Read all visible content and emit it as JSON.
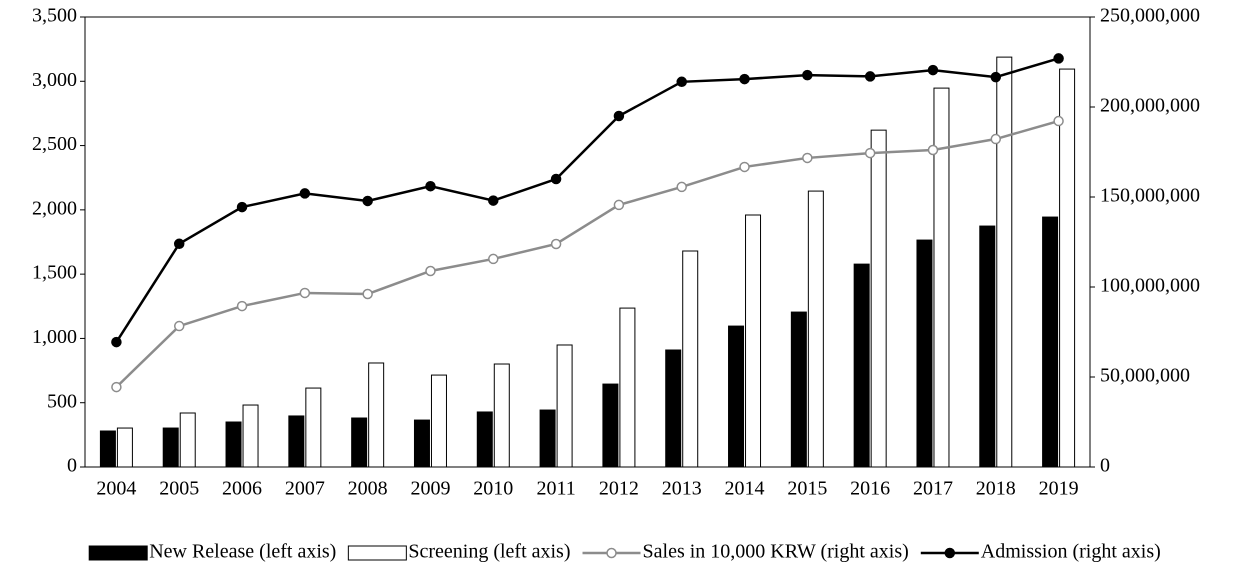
{
  "chart_data": {
    "type": "combo",
    "categories": [
      "2004",
      "2005",
      "2006",
      "2007",
      "2008",
      "2009",
      "2010",
      "2011",
      "2012",
      "2013",
      "2014",
      "2015",
      "2016",
      "2017",
      "2018",
      "2019"
    ],
    "series": [
      {
        "name": "New Release (left axis)",
        "type": "bar",
        "color": "#000000",
        "values": [
          280,
          303,
          350,
          397,
          381,
          365,
          428,
          443,
          645,
          910,
          1096,
          1205,
          1578,
          1765,
          1874,
          1944
        ]
      },
      {
        "name": "Screening (left axis)",
        "type": "bar",
        "color": "#ffffff",
        "values": [
          303,
          420,
          482,
          614,
          809,
          715,
          801,
          949,
          1236,
          1680,
          1960,
          2146,
          2620,
          2947,
          3188,
          3095
        ]
      },
      {
        "name": "Sales in 10,000 KRW (right axis)",
        "type": "line",
        "axis": "y2",
        "color": "#8c8c8c",
        "values": [
          44400000,
          78300000,
          89400000,
          96700000,
          96100000,
          108900000,
          115600000,
          123900000,
          145600000,
          155600000,
          166700000,
          171700000,
          174400000,
          176100000,
          182200000,
          192200000
        ]
      },
      {
        "name": "Admission (right axis)",
        "type": "line",
        "axis": "y2",
        "color": "#000000",
        "values": [
          69400000,
          124000000,
          144400000,
          152000000,
          147800000,
          156000000,
          148000000,
          160000000,
          195000000,
          214000000,
          215500000,
          217700000,
          217000000,
          220500000,
          216600000,
          227000000
        ]
      }
    ],
    "ylim": [
      0,
      3500
    ],
    "yticks": [
      0,
      500,
      {
        "value": 1000,
        "label": "1,000"
      },
      {
        "value": 1500,
        "label": "1,500"
      },
      {
        "value": 2000,
        "label": "2,000"
      },
      {
        "value": 2500,
        "label": "2,500"
      },
      {
        "value": 3000,
        "label": "3,000"
      },
      {
        "value": 3500,
        "label": "3,500"
      }
    ],
    "y2lim": [
      0,
      250000000
    ],
    "y2ticks": [
      0,
      {
        "value": 50000000,
        "label": "50,000,000"
      },
      {
        "value": 100000000,
        "label": "100,000,000"
      },
      {
        "value": 150000000,
        "label": "150,000,000"
      },
      {
        "value": 200000000,
        "label": "200,000,000"
      },
      {
        "value": 250000000,
        "label": "250,000,000"
      }
    ],
    "legend": "bottom"
  }
}
